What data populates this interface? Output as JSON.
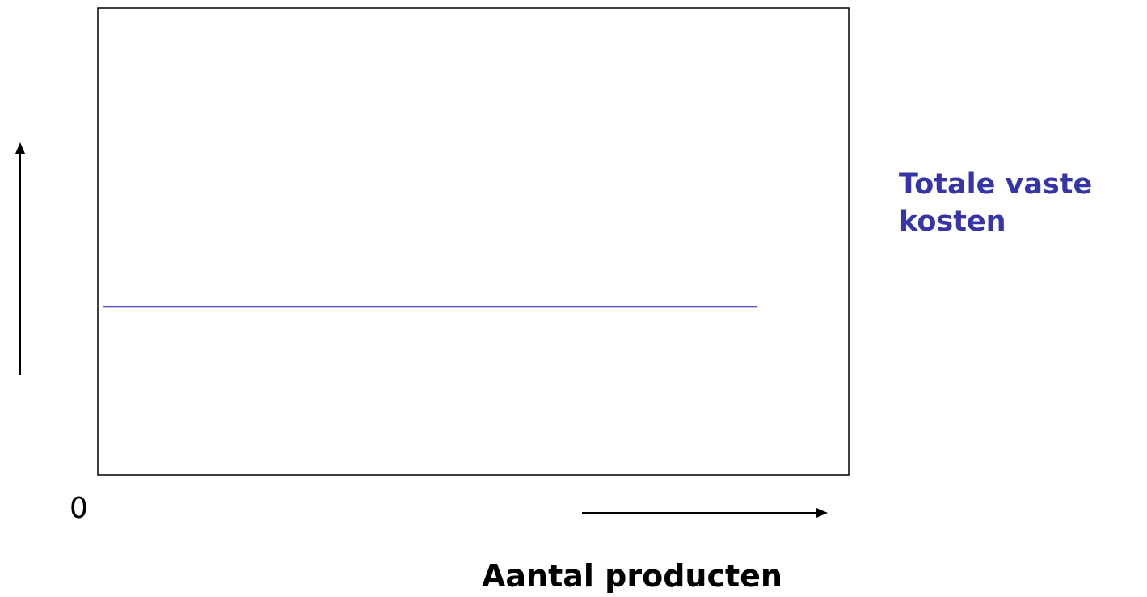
{
  "chart_data": {
    "type": "line",
    "title": "",
    "xlabel": "Aantal producten",
    "ylabel": "",
    "origin_label": "0",
    "xlim": [
      0,
      1
    ],
    "ylim": [
      0,
      1
    ],
    "grid": false,
    "legend": "none",
    "series": [
      {
        "name": "Totale vaste kosten",
        "label_lines": [
          "Totale vaste",
          "kosten"
        ],
        "color": "#1a1aa0",
        "x": [
          0,
          0.87
        ],
        "y": [
          0.36,
          0.36
        ]
      }
    ]
  }
}
